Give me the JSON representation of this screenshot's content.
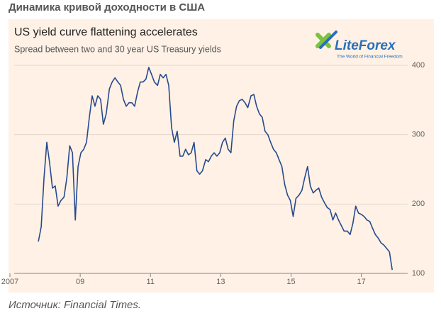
{
  "heading": "Динамика кривой доходности в США",
  "source": "Источник: Financial Times.",
  "logo": {
    "name": "LiteForex",
    "tagline": "The World of Financial Freedom"
  },
  "chart_data": {
    "type": "line",
    "title": "US yield curve flattening accelerates",
    "subtitle": "Spread between two and 30 year US Treasury yields",
    "color": "#264a8f",
    "x": [
      2007.81,
      2007.89,
      2007.97,
      2008.05,
      2008.13,
      2008.21,
      2008.29,
      2008.37,
      2008.45,
      2008.54,
      2008.62,
      2008.7,
      2008.78,
      2008.86,
      2008.94,
      2009.02,
      2009.1,
      2009.18,
      2009.26,
      2009.34,
      2009.42,
      2009.5,
      2009.58,
      2009.66,
      2009.74,
      2009.83,
      2009.91,
      2009.99,
      2010.07,
      2010.15,
      2010.23,
      2010.31,
      2010.39,
      2010.47,
      2010.55,
      2010.63,
      2010.71,
      2010.79,
      2010.87,
      2010.95,
      2011.03,
      2011.11,
      2011.2,
      2011.28,
      2011.36,
      2011.44,
      2011.52,
      2011.6,
      2011.68,
      2011.76,
      2011.84,
      2011.92,
      2012.0,
      2012.08,
      2012.16,
      2012.24,
      2012.32,
      2012.4,
      2012.48,
      2012.57,
      2012.65,
      2012.73,
      2012.81,
      2012.89,
      2012.97,
      2013.05,
      2013.13,
      2013.21,
      2013.29,
      2013.37,
      2013.45,
      2013.53,
      2013.61,
      2013.69,
      2013.77,
      2013.86,
      2013.94,
      2014.02,
      2014.1,
      2014.18,
      2014.26,
      2014.34,
      2014.42,
      2014.5,
      2014.58,
      2014.66,
      2014.74,
      2014.82,
      2014.9,
      2014.98,
      2015.06,
      2015.14,
      2015.23,
      2015.31,
      2015.39,
      2015.47,
      2015.55,
      2015.63,
      2015.71,
      2015.79,
      2015.87,
      2015.95,
      2016.03,
      2016.11,
      2016.19,
      2016.27,
      2016.35,
      2016.43,
      2016.51,
      2016.6,
      2016.68,
      2016.76,
      2016.84,
      2016.92,
      2017.0,
      2017.08,
      2017.16,
      2017.24,
      2017.32,
      2017.4,
      2017.48,
      2017.56,
      2017.64,
      2017.72,
      2017.8,
      2017.88
    ],
    "values": [
      146,
      167,
      238,
      289,
      259,
      223,
      226,
      197,
      205,
      210,
      238,
      284,
      274,
      177,
      254,
      274,
      279,
      289,
      325,
      356,
      341,
      356,
      351,
      315,
      330,
      366,
      376,
      382,
      376,
      371,
      351,
      341,
      346,
      346,
      341,
      361,
      376,
      376,
      380,
      397,
      387,
      376,
      371,
      387,
      382,
      387,
      371,
      310,
      289,
      305,
      269,
      269,
      279,
      271,
      274,
      289,
      248,
      243,
      248,
      264,
      261,
      269,
      274,
      269,
      274,
      289,
      295,
      279,
      274,
      320,
      341,
      349,
      351,
      346,
      339,
      356,
      358,
      341,
      330,
      325,
      305,
      300,
      289,
      279,
      274,
      264,
      254,
      228,
      213,
      205,
      182,
      208,
      213,
      220,
      238,
      254,
      226,
      216,
      220,
      223,
      210,
      202,
      195,
      192,
      177,
      187,
      177,
      169,
      161,
      161,
      156,
      172,
      197,
      187,
      185,
      182,
      177,
      175,
      165,
      156,
      151,
      144,
      141,
      136,
      131,
      105
    ],
    "xlim": [
      2007,
      2018.4
    ],
    "xticks": [
      2007,
      {
        "value": 2009,
        "label": "09"
      },
      {
        "value": 2011,
        "label": "11"
      },
      {
        "value": 2013,
        "label": "13"
      },
      {
        "value": 2015,
        "label": "15"
      },
      {
        "value": 2017,
        "label": "17"
      }
    ],
    "ylim": [
      100,
      400
    ],
    "yticks": [
      100,
      200,
      300,
      400
    ],
    "grid": true
  }
}
